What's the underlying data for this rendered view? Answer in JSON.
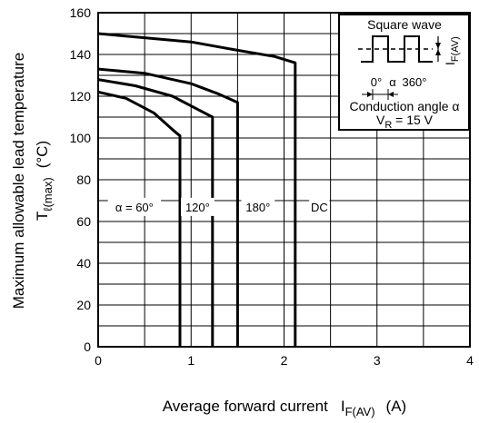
{
  "chart_data": {
    "type": "line",
    "xlabel": {
      "main": "Average forward current",
      "symbol": "I",
      "symbol_sub": "F(AV)",
      "unit": "(A)"
    },
    "ylabel": {
      "line1": "Maximum allowable lead temperature",
      "line2_symbol": "T",
      "line2_sub": "ℓ(max)",
      "line2_unit": "(°C)"
    },
    "xlim": [
      0,
      4
    ],
    "ylim": [
      0,
      160
    ],
    "x_ticks": [
      0,
      1,
      2,
      3,
      4
    ],
    "x_tick_labels": [
      "0",
      "1",
      "2",
      "3",
      "4"
    ],
    "y_ticks": [
      0,
      20,
      40,
      60,
      80,
      100,
      120,
      140,
      160
    ],
    "y_tick_labels": [
      "0",
      "20",
      "40",
      "60",
      "80",
      "100",
      "120",
      "140",
      "160"
    ],
    "x_grid_step": 0.5,
    "y_grid_step": 10,
    "grid": true,
    "series": [
      {
        "name": "α = 60°",
        "x": [
          0,
          0.3,
          0.6,
          0.8,
          0.88,
          0.88
        ],
        "y": [
          122,
          119,
          112,
          104,
          101,
          0
        ],
        "label_x": 0.39,
        "label_y": 67
      },
      {
        "name": "120°",
        "x": [
          0,
          0.4,
          0.8,
          1.1,
          1.23,
          1.23
        ],
        "y": [
          128,
          125,
          120,
          113,
          110,
          0
        ],
        "label_x": 1.07,
        "label_y": 67
      },
      {
        "name": "180°",
        "x": [
          0,
          0.5,
          1.0,
          1.3,
          1.5,
          1.5
        ],
        "y": [
          133,
          131,
          126,
          121,
          117,
          0
        ],
        "label_x": 1.72,
        "label_y": 67
      },
      {
        "name": "DC",
        "x": [
          0,
          0.5,
          1.0,
          1.5,
          1.9,
          2.12,
          2.12
        ],
        "y": [
          150,
          148,
          146,
          142,
          139,
          136,
          0
        ],
        "label_x": 2.38,
        "label_y": 67
      }
    ],
    "inset": {
      "title": "Square wave",
      "symbol": "I",
      "symbol_sub": "F(AV)",
      "angle_labels": [
        "0°",
        "α",
        "360°"
      ],
      "caption_line1": "Conduction angle α",
      "caption_line2_symbol": "V",
      "caption_line2_sub": "R",
      "caption_line2_rest": " = 15 V"
    }
  }
}
